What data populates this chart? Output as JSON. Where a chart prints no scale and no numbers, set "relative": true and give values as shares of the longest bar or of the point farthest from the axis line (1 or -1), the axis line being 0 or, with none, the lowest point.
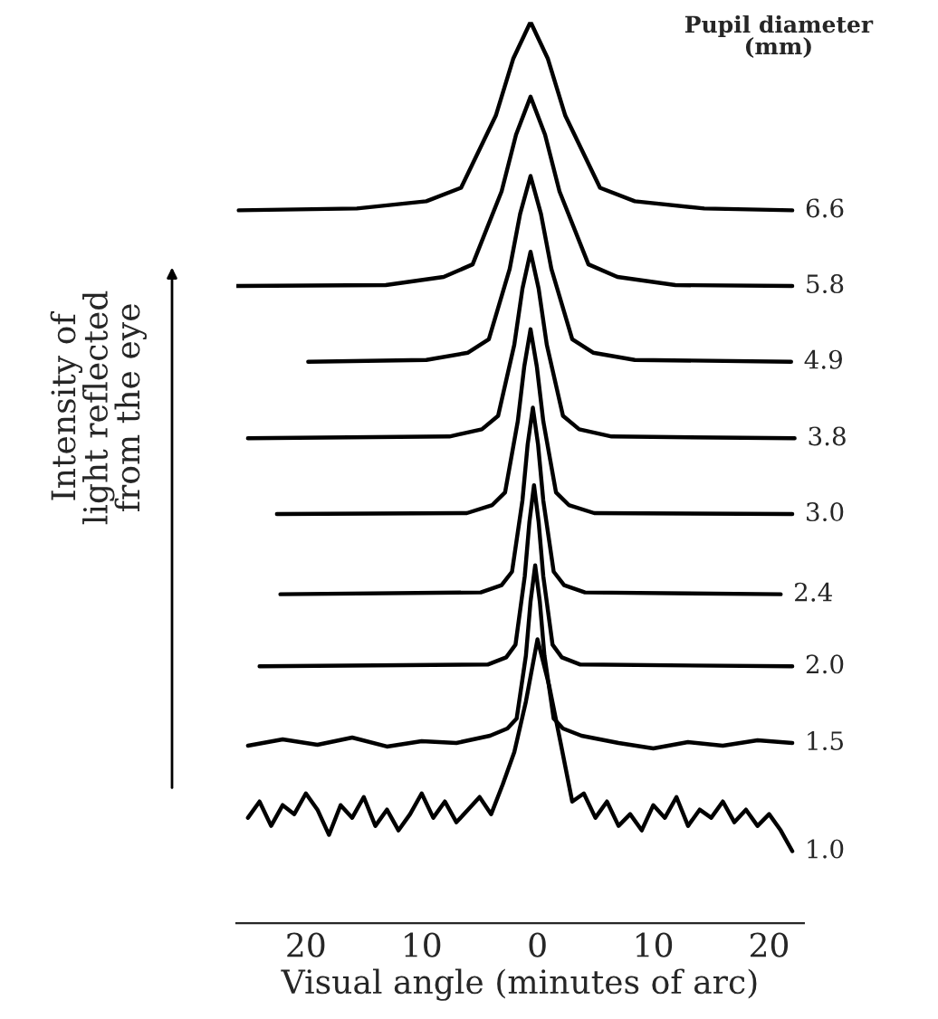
{
  "chart_data": {
    "type": "line",
    "relative": true,
    "xlabel": "Visual angle (minutes of arc)",
    "ylabel": "Intensity of\nlight reflected\nfrom the eye",
    "annotations": [
      "Pupil diameter\n(mm)"
    ],
    "xlim": [
      -26,
      23
    ],
    "xticks": [
      {
        "value": -20,
        "label": "20"
      },
      {
        "value": -10,
        "label": "10"
      },
      0,
      10,
      20
    ],
    "grid": false,
    "legend": false,
    "marker": "none",
    "line_style": "solid",
    "series": [
      {
        "name": "6.6",
        "color": "#000000",
        "x": [
          -25.8,
          -15.6,
          -9.6,
          -6.6,
          -3.6,
          -2.1,
          -0.6,
          0.9,
          2.4,
          5.4,
          8.4,
          14.4,
          22
        ],
        "values": [
          0.791,
          0.793,
          0.801,
          0.816,
          0.896,
          0.959,
          1.0,
          0.959,
          0.896,
          0.816,
          0.801,
          0.793,
          0.791
        ]
      },
      {
        "name": "5.8",
        "color": "#000000",
        "x": [
          -26,
          -13.1,
          -8.1,
          -5.6,
          -3.1,
          -1.85,
          -0.6,
          0.65,
          1.9,
          4.4,
          6.9,
          11.9,
          22
        ],
        "values": [
          0.707,
          0.708,
          0.717,
          0.731,
          0.812,
          0.875,
          0.917,
          0.875,
          0.812,
          0.731,
          0.717,
          0.708,
          0.707
        ]
      },
      {
        "name": "4.9",
        "color": "#000000",
        "x": [
          -19.8,
          -9.6,
          -6.0,
          -4.2,
          -2.4,
          -1.5,
          -0.6,
          0.3,
          1.2,
          3.0,
          4.8,
          8.4,
          21.9
        ],
        "values": [
          0.623,
          0.625,
          0.633,
          0.648,
          0.726,
          0.787,
          0.829,
          0.787,
          0.726,
          0.648,
          0.633,
          0.625,
          0.623
        ]
      },
      {
        "name": "3.8",
        "color": "#000000",
        "x": [
          -25,
          -7.6,
          -4.8,
          -3.4,
          -2.0,
          -1.3,
          -0.6,
          0.1,
          0.8,
          2.2,
          3.6,
          6.4,
          22.2
        ],
        "values": [
          0.538,
          0.54,
          0.548,
          0.563,
          0.642,
          0.704,
          0.745,
          0.704,
          0.642,
          0.563,
          0.548,
          0.54,
          0.538
        ]
      },
      {
        "name": "3.0",
        "color": "#000000",
        "x": [
          -22.5,
          -6.1,
          -3.9,
          -2.8,
          -1.7,
          -1.15,
          -0.6,
          -0.05,
          0.5,
          1.6,
          2.7,
          4.9,
          22
        ],
        "values": [
          0.454,
          0.455,
          0.464,
          0.478,
          0.557,
          0.617,
          0.659,
          0.617,
          0.557,
          0.478,
          0.464,
          0.455,
          0.454
        ]
      },
      {
        "name": "2.4",
        "color": "#000000",
        "x": [
          -22.2,
          -4.9,
          -3.1,
          -2.2,
          -1.3,
          -0.85,
          -0.4,
          0.05,
          0.5,
          1.4,
          2.3,
          4.1,
          21
        ],
        "values": [
          0.365,
          0.367,
          0.375,
          0.39,
          0.469,
          0.531,
          0.572,
          0.531,
          0.469,
          0.39,
          0.375,
          0.367,
          0.365
        ]
      },
      {
        "name": "2.0",
        "color": "#000000",
        "x": [
          -24,
          -4.3,
          -2.7,
          -1.9,
          -1.1,
          -0.7,
          -0.3,
          0.1,
          0.5,
          1.3,
          2.1,
          3.7,
          22
        ],
        "values": [
          0.285,
          0.287,
          0.295,
          0.309,
          0.385,
          0.445,
          0.486,
          0.445,
          0.385,
          0.309,
          0.295,
          0.287,
          0.285
        ]
      },
      {
        "name": "1.5",
        "color": "#000000",
        "x": [
          -25,
          -22,
          -19,
          -16,
          -13,
          -10,
          -7,
          -4.1,
          -2.6,
          -1.8,
          -1.0,
          -0.6,
          -0.2,
          0.2,
          0.6,
          1.4,
          2.2,
          3.8,
          7,
          10,
          13,
          16,
          19,
          22
        ],
        "values": [
          0.197,
          0.204,
          0.198,
          0.206,
          0.196,
          0.202,
          0.2,
          0.208,
          0.216,
          0.227,
          0.297,
          0.357,
          0.397,
          0.357,
          0.297,
          0.227,
          0.216,
          0.208,
          0.2,
          0.194,
          0.201,
          0.197,
          0.203,
          0.2
        ]
      },
      {
        "name": "1.0",
        "color": "#000000",
        "x": [
          -25,
          -24,
          -23,
          -22,
          -21,
          -20,
          -19,
          -18,
          -17,
          -16,
          -15,
          -14,
          -13,
          -12,
          -11,
          -10,
          -9,
          -8,
          -7,
          -6,
          -5,
          -4,
          -3,
          -2,
          -1,
          0,
          1,
          2,
          3,
          4,
          5,
          6,
          7,
          8,
          9,
          10,
          11,
          12,
          13,
          14,
          15,
          16,
          17,
          18,
          19,
          20,
          21,
          22
        ],
        "values": [
          0.117,
          0.135,
          0.108,
          0.131,
          0.121,
          0.144,
          0.126,
          0.098,
          0.131,
          0.117,
          0.14,
          0.108,
          0.126,
          0.103,
          0.121,
          0.144,
          0.117,
          0.135,
          0.112,
          0.126,
          0.14,
          0.121,
          0.154,
          0.19,
          0.246,
          0.315,
          0.264,
          0.2,
          0.135,
          0.144,
          0.117,
          0.135,
          0.108,
          0.121,
          0.103,
          0.131,
          0.117,
          0.14,
          0.108,
          0.126,
          0.117,
          0.135,
          0.112,
          0.126,
          0.108,
          0.121,
          0.103,
          0.08
        ]
      }
    ]
  }
}
